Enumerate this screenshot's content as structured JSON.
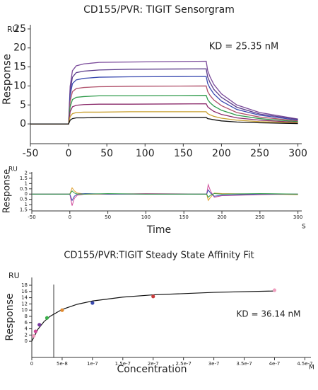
{
  "chart_data": [
    {
      "type": "line",
      "title": "CD155/PVR: TIGIT Sensorgram",
      "y_label": "Response",
      "y_unit": "RU",
      "annotation": "KD = 25.35 nM",
      "xlim": [
        -50,
        305
      ],
      "xticks": [
        -50,
        0,
        50,
        100,
        150,
        200,
        250,
        300
      ],
      "ylim": [
        -5.2,
        26.1
      ],
      "yticks": [
        0,
        5,
        10,
        15,
        20,
        25
      ],
      "x": [
        -50,
        0,
        2,
        5,
        10,
        20,
        40,
        80,
        180,
        182,
        185,
        190,
        200,
        220,
        250,
        300
      ],
      "series": [
        {
          "color": "#7a4a9a",
          "values": [
            0,
            0,
            9.9,
            14.0,
            15.3,
            15.8,
            16.2,
            16.3,
            16.5,
            14.0,
            12.4,
            10.4,
            7.9,
            5.0,
            3.0,
            1.3
          ]
        },
        {
          "color": "#5a3a8a",
          "values": [
            0,
            0,
            8.7,
            12.3,
            13.5,
            13.9,
            14.2,
            14.4,
            14.5,
            12.3,
            10.9,
            9.1,
            7.0,
            4.4,
            2.6,
            1.2
          ]
        },
        {
          "color": "#3a4ab0",
          "values": [
            0,
            0,
            7.5,
            10.6,
            11.6,
            12.0,
            12.3,
            12.4,
            12.5,
            10.6,
            9.4,
            7.9,
            6.0,
            3.8,
            2.3,
            1.0
          ]
        },
        {
          "color": "#b0506a",
          "values": [
            0,
            0,
            6.0,
            8.5,
            9.3,
            9.6,
            9.8,
            9.9,
            10.0,
            8.5,
            7.5,
            6.3,
            4.8,
            3.0,
            1.8,
            0.8
          ]
        },
        {
          "color": "#2e9a4a",
          "values": [
            0,
            0,
            4.5,
            6.4,
            7.0,
            7.2,
            7.4,
            7.4,
            7.5,
            6.4,
            5.6,
            4.7,
            3.6,
            2.3,
            1.4,
            0.6
          ]
        },
        {
          "color": "#8a2a6a",
          "values": [
            0,
            0,
            3.2,
            4.5,
            4.9,
            5.1,
            5.2,
            5.2,
            5.3,
            4.5,
            4.0,
            3.3,
            2.5,
            1.6,
            1.0,
            0.4
          ]
        },
        {
          "color": "#c8a030",
          "values": [
            0,
            0,
            1.9,
            2.7,
            3.0,
            3.1,
            3.1,
            3.2,
            3.2,
            2.7,
            2.4,
            2.0,
            1.5,
            1.0,
            0.6,
            0.3
          ]
        },
        {
          "color": "#111111",
          "values": [
            0,
            0,
            1.0,
            1.4,
            1.6,
            1.6,
            1.7,
            1.7,
            1.7,
            1.4,
            1.3,
            1.1,
            0.8,
            0.5,
            0.3,
            0.1
          ]
        }
      ]
    },
    {
      "type": "line",
      "x_label": "Time",
      "x_unit": "S",
      "y_label": "Response",
      "y_unit": "RU",
      "xlim": [
        -50,
        305
      ],
      "xticks": [
        -50,
        0,
        50,
        100,
        150,
        200,
        250,
        300
      ],
      "ylim": [
        -1.6,
        2.1
      ],
      "yticks": [
        2,
        1.5,
        1,
        0.5,
        0,
        {
          "value": -0.5,
          "label": "0.5"
        },
        {
          "value": -1,
          "label": "1"
        },
        {
          "value": -1.5,
          "label": "1.5"
        }
      ],
      "x": [
        -50,
        0,
        3,
        6,
        10,
        20,
        50,
        100,
        180,
        182,
        185,
        190,
        200,
        250,
        300
      ],
      "series": [
        {
          "color": "#d04a9a",
          "values": [
            0,
            0,
            -1.1,
            -0.4,
            -0.1,
            0,
            0,
            0.05,
            0,
            0.9,
            0.3,
            -0.3,
            -0.15,
            -0.05,
            0
          ]
        },
        {
          "color": "#e0a030",
          "values": [
            0,
            0,
            0.6,
            0.3,
            0.1,
            0,
            0,
            0,
            0,
            -0.6,
            -0.3,
            0.1,
            0.05,
            0,
            -0.05
          ]
        },
        {
          "color": "#3a4ab0",
          "values": [
            0,
            0,
            -0.6,
            -0.2,
            0,
            0.05,
            0,
            0,
            0,
            0.4,
            0.1,
            -0.2,
            -0.1,
            0,
            0
          ]
        },
        {
          "color": "#2e9a4a",
          "values": [
            0,
            0,
            0.3,
            0.1,
            0,
            0,
            0.05,
            0,
            0,
            -0.3,
            -0.1,
            0.05,
            0,
            0.05,
            0
          ]
        }
      ]
    },
    {
      "type": "scatter",
      "title": "CD155/PVR:TIGIT Steady State Affinity Fit",
      "x_label": "Concentration",
      "x_unit": "M",
      "y_label": "Response",
      "y_unit": "RU",
      "annotation": "KD = 36.14 nM",
      "xlim": [
        0,
        4.6e-07
      ],
      "xticks": [
        0,
        5e-08,
        1e-07,
        1.5e-07,
        2e-07,
        2.5e-07,
        3e-07,
        3.5e-07,
        4e-07,
        4.5e-07
      ],
      "ylim": [
        -5.2,
        20.5
      ],
      "yticks": [
        0,
        2,
        4,
        6,
        8,
        10,
        12,
        14,
        16,
        18
      ],
      "kd_marker": 3.614e-08,
      "points": {
        "x": [
          3.125e-09,
          6.25e-09,
          1.25e-08,
          2.5e-08,
          5e-08,
          1e-07,
          2e-07,
          4e-07
        ],
        "values": [
          1.7,
          3.2,
          5.3,
          7.5,
          10.0,
          12.3,
          14.4,
          16.4
        ],
        "colors": [
          "#f0a0c0",
          "#d04a9a",
          "#7a3aa0",
          "#3ab04a",
          "#e08a30",
          "#3a4ab0",
          "#c83a3a",
          "#f0a0c0"
        ]
      },
      "fit_curve": {
        "color": "#111111",
        "x": [
          0,
          1e-08,
          2e-08,
          3e-08,
          5e-08,
          7.5e-08,
          1e-07,
          1.5e-07,
          2e-07,
          3e-07,
          4e-07
        ],
        "values": [
          0,
          3.83,
          6.29,
          8.0,
          10.23,
          11.89,
          12.94,
          14.19,
          14.91,
          15.71,
          16.15
        ]
      }
    }
  ]
}
